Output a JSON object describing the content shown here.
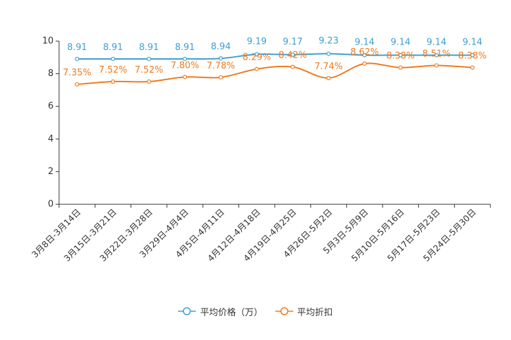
{
  "chart_data": {
    "type": "line",
    "title": "",
    "xlabel": "",
    "ylabel": "",
    "ylim": [
      0,
      10
    ],
    "yticks": [
      0,
      2,
      4,
      6,
      8,
      10
    ],
    "grid": false,
    "legend_position": "bottom",
    "categories": [
      "3月8日-3月14日",
      "3月15日-3月21日",
      "3月22日-3月28日",
      "3月29日-4月4日",
      "4月5日-4月11日",
      "4月12日-4月18日",
      "4月19日-4月25日",
      "4月26日-5月2日",
      "5月3日-5月9日",
      "5月10日-5月16日",
      "5月17日-5月23日",
      "5月24日-5月30日"
    ],
    "series": [
      {
        "name": "平均价格（万）",
        "color": "#3e9fcf",
        "values": [
          8.91,
          8.91,
          8.91,
          8.91,
          8.94,
          9.19,
          9.17,
          9.23,
          9.14,
          9.14,
          9.14,
          9.14
        ],
        "labels": [
          "8.91",
          "8.91",
          "8.91",
          "8.91",
          "8.94",
          "9.19",
          "9.17",
          "9.23",
          "9.14",
          "9.14",
          "9.14",
          "9.14"
        ]
      },
      {
        "name": "平均折扣",
        "color": "#f07a1c",
        "values": [
          7.35,
          7.52,
          7.52,
          7.8,
          7.78,
          8.29,
          8.42,
          7.74,
          8.62,
          8.38,
          8.51,
          8.38
        ],
        "labels": [
          "7.35%",
          "7.52%",
          "7.52%",
          "7.80%",
          "7.78%",
          "8.29%",
          "8.42%",
          "7.74%",
          "8.62%",
          "8.38%",
          "8.51%",
          "8.38%"
        ]
      }
    ]
  }
}
